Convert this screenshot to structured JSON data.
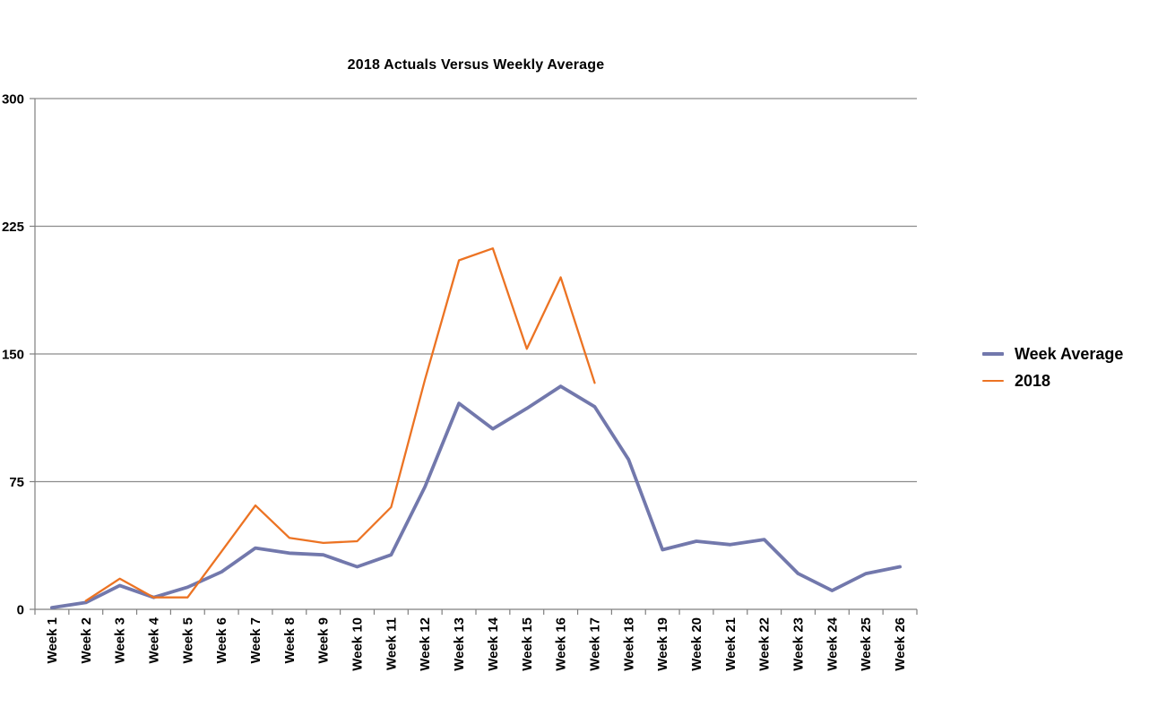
{
  "title": "2018 Actuals Versus Weekly Average",
  "colors": {
    "week_average_line": "#7278AC",
    "line_2018": "#EC7323",
    "gridline": "#8C8C8C",
    "axis": "#7F7F7F",
    "text": "#000000",
    "background": "#FFFFFF"
  },
  "legend": {
    "position": "right",
    "items": [
      {
        "label": "Week Average"
      },
      {
        "label": "2018"
      }
    ]
  },
  "chart_data": {
    "type": "line",
    "title": "2018 Actuals Versus Weekly Average",
    "xlabel": "",
    "ylabel": "",
    "ylim": [
      0,
      300
    ],
    "y_ticks": [
      0,
      75,
      150,
      225,
      300
    ],
    "grid": true,
    "legend_position": "right",
    "categories": [
      "Week 1",
      "Week 2",
      "Week 3",
      "Week 4",
      "Week 5",
      "Week 6",
      "Week 7",
      "Week 8",
      "Week 9",
      "Week 10",
      "Week 11",
      "Week 12",
      "Week 13",
      "Week 14",
      "Week 15",
      "Week 16",
      "Week 17",
      "Week 18",
      "Week 19",
      "Week 20",
      "Week 21",
      "Week 22",
      "Week 23",
      "Week 24",
      "Week 25",
      "Week 26"
    ],
    "series": [
      {
        "name": "Week Average",
        "color": "#7278AC",
        "stroke_width": 3.8,
        "values": [
          1,
          4,
          14,
          7,
          13,
          22,
          36,
          33,
          32,
          25,
          32,
          72,
          121,
          106,
          118,
          131,
          119,
          88,
          35,
          40,
          38,
          41,
          21,
          11,
          21,
          25
        ]
      },
      {
        "name": "2018",
        "color": "#EC7323",
        "stroke_width": 2.3,
        "values": [
          null,
          5,
          18,
          7,
          7,
          34,
          61,
          42,
          39,
          40,
          60,
          135,
          205,
          212,
          153,
          195,
          133,
          null,
          null,
          null,
          null,
          null,
          null,
          null,
          null,
          null
        ]
      }
    ]
  }
}
